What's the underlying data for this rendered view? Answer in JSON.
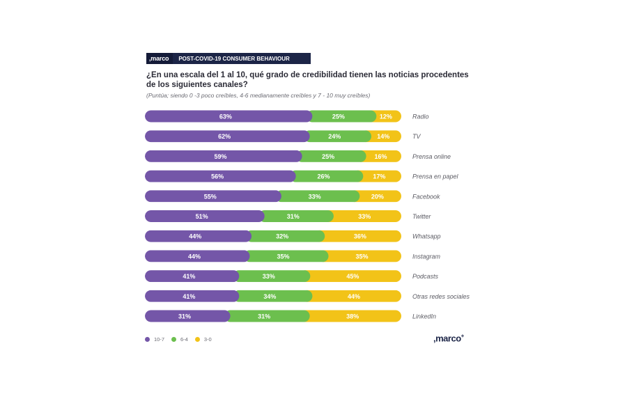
{
  "header": {
    "brand": ",marco",
    "title": "POST-COVID-19 CONSUMER BEHAVIOUR"
  },
  "question": "¿En una escala del 1 al 10, qué grado de credibilidad tienen las noticias procedentes de los siguientes canales?",
  "subtitle": "(Puntúa; siendo 0 -3 poco creíbles, 4-6 medianamente creíbles y 7 - 10 muy creíbles)",
  "logo": {
    "text": ",marco",
    "mark": "+"
  },
  "colors": {
    "purple": "#7456a8",
    "green": "#6cbf4e",
    "yellow": "#f2c318"
  },
  "legend": [
    {
      "label": "10-7",
      "color": "#7456a8"
    },
    {
      "label": "6-4",
      "color": "#6cbf4e"
    },
    {
      "label": "3-0",
      "color": "#f2c318"
    }
  ],
  "chart_data": {
    "type": "bar",
    "orientation": "horizontal",
    "stacked": true,
    "categories": [
      "Radio",
      "TV",
      "Prensa online",
      "Prensa en papel",
      "Facebook",
      "Twitter",
      "Whatsapp",
      "Instagram",
      "Podcasts",
      "Otras redes sociales",
      "LinkedIn"
    ],
    "series": [
      {
        "name": "10-7",
        "values": [
          63,
          62,
          59,
          56,
          55,
          51,
          44,
          44,
          41,
          41,
          31
        ]
      },
      {
        "name": "6-4",
        "values": [
          25,
          24,
          25,
          26,
          33,
          31,
          32,
          35,
          33,
          34,
          31
        ]
      },
      {
        "name": "3-0",
        "values": [
          12,
          14,
          16,
          17,
          20,
          33,
          36,
          35,
          45,
          44,
          38
        ]
      }
    ],
    "data_labels": [
      [
        "63%",
        "25%",
        "12%"
      ],
      [
        "62%",
        "24%",
        "14%"
      ],
      [
        "59%",
        "25%",
        "16%"
      ],
      [
        "56%",
        "26%",
        "17%"
      ],
      [
        "55%",
        "33%",
        "20%"
      ],
      [
        "51%",
        "31%",
        "33%"
      ],
      [
        "44%",
        "32%",
        "36%"
      ],
      [
        "44%",
        "35%",
        "35%"
      ],
      [
        "41%",
        "33%",
        "45%"
      ],
      [
        "41%",
        "34%",
        "44%"
      ],
      [
        "31%",
        "31%",
        "38%"
      ]
    ],
    "legend_position": "bottom-left",
    "grid": false
  }
}
